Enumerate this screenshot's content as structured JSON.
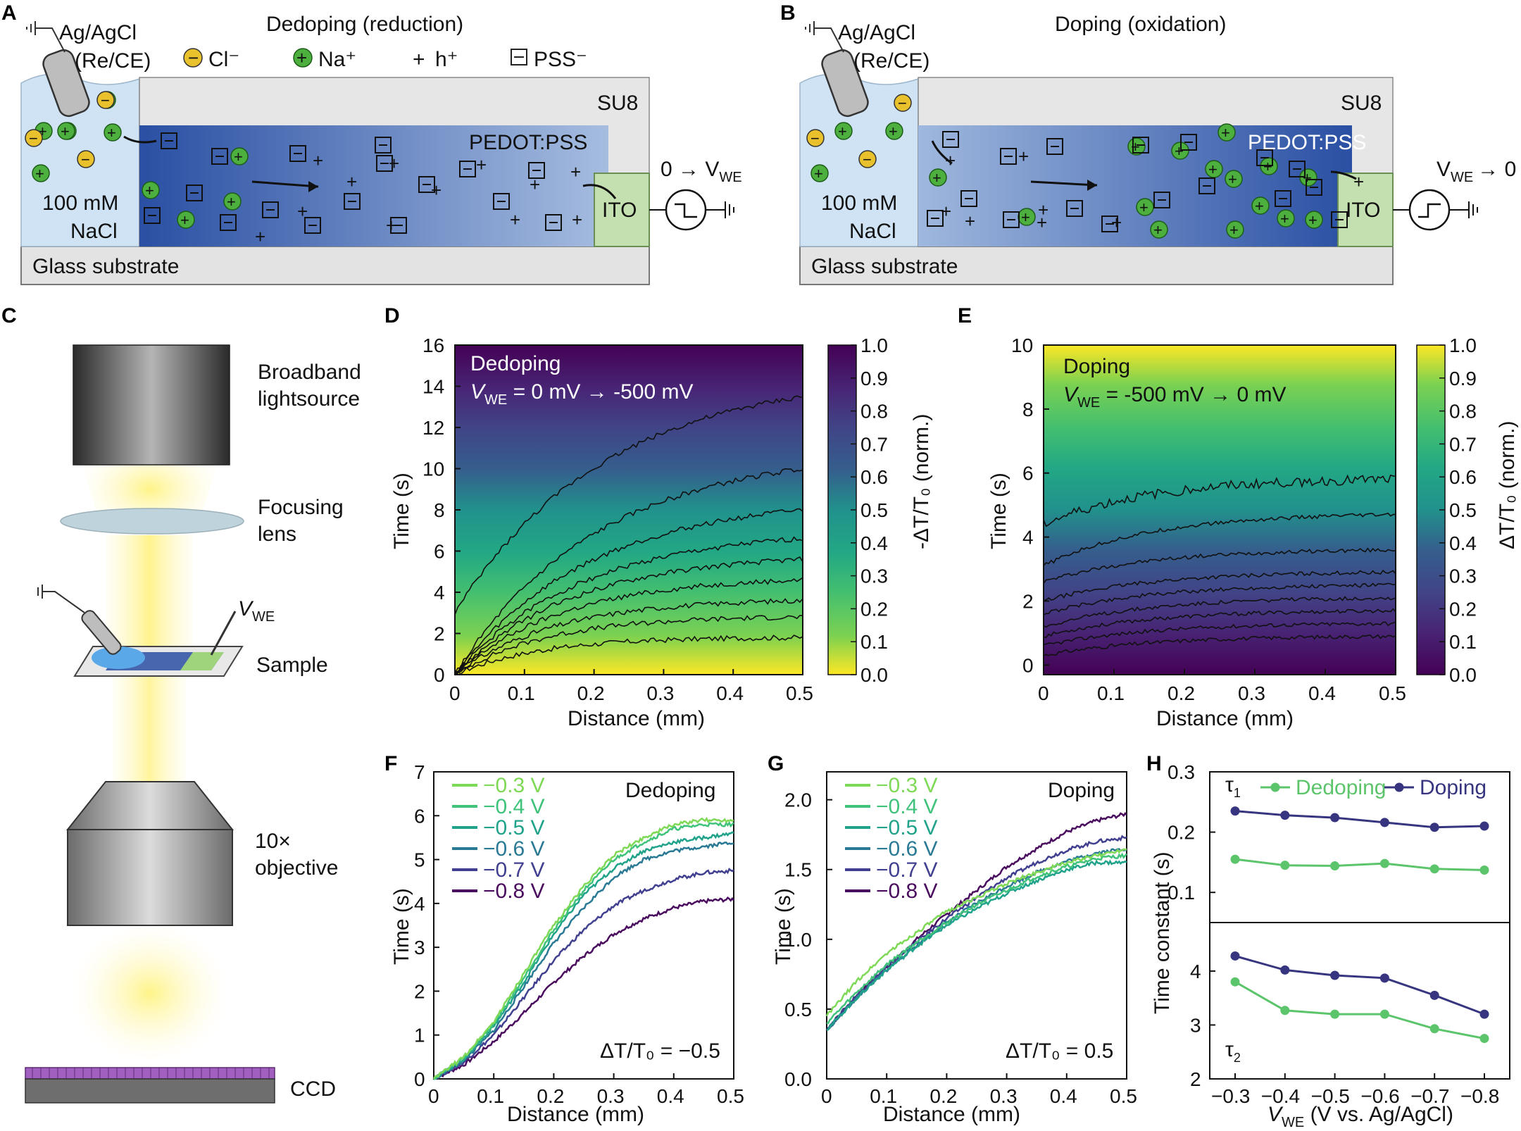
{
  "panels": {
    "A": {
      "label": "A",
      "title": "Dedoping (reduction)",
      "electrode": [
        "Ag/AgCl",
        "(Re/CE)"
      ],
      "legend": {
        "cl": "Cl⁻",
        "na": "Na⁺",
        "h": "h⁺",
        "pss": "PSS⁻"
      },
      "layer_su8": "SU8",
      "layer_pedot": "PEDOT:PSS",
      "electrolyte": [
        "100 mM",
        "NaCl"
      ],
      "contact": "ITO",
      "substrate": "Glass substrate",
      "voltage": "0 → V",
      "voltage_sub": "WE",
      "colors": {
        "electrolyte": "#cfe3f4",
        "pedot_dark": "#2a4fa3",
        "pedot_light": "#9cb6dc",
        "ito": "#c5e0b0",
        "su8": "#e6e6e6",
        "substrate": "#e3e3e3",
        "cl": "#e8c12d",
        "na": "#4caf3e"
      }
    },
    "B": {
      "label": "B",
      "title": "Doping (oxidation)",
      "electrode": [
        "Ag/AgCl",
        "(Re/CE)"
      ],
      "layer_su8": "SU8",
      "layer_pedot": "PEDOT:PSS",
      "electrolyte": [
        "100 mM",
        "NaCl"
      ],
      "contact": "ITO",
      "substrate": "Glass substrate",
      "voltage": "V",
      "voltage_sub": "WE",
      "voltage_end": "→ 0"
    },
    "C": {
      "label": "C",
      "items": [
        "Broadband lightsource",
        "Focusing lens",
        "Sample",
        "10× objective",
        "CCD"
      ],
      "vwe": "V",
      "vwe_sub": "WE"
    },
    "D": {
      "label": "D",
      "chart_data": {
        "type": "heatmap",
        "annotation": "Dedoping",
        "annotation2_prefix": "V",
        "annotation2_sub": "WE",
        "annotation2_suffix": " = 0 mV → -500 mV",
        "xlabel": "Distance (mm)",
        "ylabel": "Time (s)",
        "xlim": [
          0,
          0.5
        ],
        "ylim": [
          0,
          16
        ],
        "xticks": [
          "0",
          "0.1",
          "0.2",
          "0.3",
          "0.4",
          "0.5"
        ],
        "yticks": [
          "0",
          "2",
          "4",
          "6",
          "8",
          "10",
          "12",
          "14",
          "16"
        ],
        "colorbar_label": "-ΔT/T₀ (norm.)",
        "colorbar_ticks": [
          "0.0",
          "0.1",
          "0.2",
          "0.3",
          "0.4",
          "0.5",
          "0.6",
          "0.7",
          "0.8",
          "0.9",
          "1.0"
        ],
        "colormap": "viridis-reversed",
        "contour_levels": [
          0.1,
          0.2,
          0.3,
          0.4,
          0.5,
          0.6,
          0.7,
          0.8,
          0.9
        ],
        "contour_end_times": [
          1.8,
          2.8,
          3.6,
          4.6,
          5.6,
          6.6,
          8.0,
          10.0,
          13.5
        ]
      }
    },
    "E": {
      "label": "E",
      "chart_data": {
        "type": "heatmap",
        "annotation": "Doping",
        "annotation2_prefix": "V",
        "annotation2_sub": "WE",
        "annotation2_suffix": " = -500 mV → 0 mV",
        "xlabel": "Distance (mm)",
        "ylabel": "Time (s)",
        "xlim": [
          0,
          0.5
        ],
        "ylim": [
          -0.3,
          10
        ],
        "xticks": [
          "0",
          "0.1",
          "0.2",
          "0.3",
          "0.4",
          "0.5"
        ],
        "yticks": [
          "0",
          "2",
          "4",
          "6",
          "8",
          "10"
        ],
        "colorbar_label": "ΔT/T₀ (norm.)",
        "colorbar_ticks": [
          "0.0",
          "0.1",
          "0.2",
          "0.3",
          "0.4",
          "0.5",
          "0.6",
          "0.7",
          "0.8",
          "0.9",
          "1.0"
        ],
        "colormap": "viridis",
        "contour_start_times": [
          0.3,
          0.6,
          0.9,
          1.2,
          1.6,
          2.0,
          2.6,
          3.1,
          4.4
        ],
        "contour_end_times": [
          0.9,
          1.3,
          1.7,
          2.1,
          2.5,
          2.9,
          3.6,
          4.7,
          5.8
        ]
      }
    },
    "F": {
      "label": "F",
      "chart_data": {
        "type": "line",
        "annotation": "Dedoping",
        "condition": "ΔT/T₀ = −0.5",
        "xlabel": "Distance (mm)",
        "ylabel": "Time (s)",
        "xlim": [
          0,
          0.5
        ],
        "ylim": [
          0,
          7
        ],
        "xticks": [
          "0",
          "0.1",
          "0.2",
          "0.3",
          "0.4",
          "0.5"
        ],
        "yticks": [
          "0",
          "1",
          "2",
          "3",
          "4",
          "5",
          "6",
          "7"
        ],
        "x": [
          0,
          0.05,
          0.1,
          0.15,
          0.2,
          0.25,
          0.3,
          0.35,
          0.4,
          0.45,
          0.5
        ],
        "series": [
          {
            "name": "−0.3 V",
            "color": "#7ed957",
            "values": [
              0,
              0.5,
              1.3,
              2.4,
              3.5,
              4.4,
              5.1,
              5.5,
              5.8,
              5.9,
              5.9
            ]
          },
          {
            "name": "−0.4 V",
            "color": "#3fc27a",
            "values": [
              0,
              0.48,
              1.25,
              2.3,
              3.4,
              4.3,
              5.0,
              5.4,
              5.7,
              5.8,
              5.8
            ]
          },
          {
            "name": "−0.5 V",
            "color": "#20a38a",
            "values": [
              0,
              0.45,
              1.2,
              2.2,
              3.3,
              4.2,
              4.8,
              5.2,
              5.4,
              5.5,
              5.6
            ]
          },
          {
            "name": "−0.6 V",
            "color": "#2a7a95",
            "values": [
              0,
              0.42,
              1.1,
              2.1,
              3.1,
              3.9,
              4.6,
              5.0,
              5.2,
              5.3,
              5.4
            ]
          },
          {
            "name": "−0.7 V",
            "color": "#413f8f",
            "values": [
              0,
              0.38,
              1.0,
              1.85,
              2.7,
              3.4,
              3.95,
              4.3,
              4.55,
              4.7,
              4.75
            ]
          },
          {
            "name": "−0.8 V",
            "color": "#4a0c5e",
            "values": [
              0,
              0.32,
              0.85,
              1.5,
              2.2,
              2.8,
              3.3,
              3.65,
              3.9,
              4.05,
              4.1
            ]
          }
        ]
      }
    },
    "G": {
      "label": "G",
      "chart_data": {
        "type": "line",
        "annotation": "Doping",
        "condition": "ΔT/T₀ = 0.5",
        "xlabel": "Distance (mm)",
        "ylabel": "Time (s)",
        "xlim": [
          0,
          0.5
        ],
        "ylim": [
          0,
          2.2
        ],
        "xticks": [
          "0",
          "0.1",
          "0.2",
          "0.3",
          "0.4",
          "0.5"
        ],
        "yticks": [
          "0.0",
          "0.5",
          "1.0",
          "1.5",
          "2.0"
        ],
        "x": [
          0,
          0.05,
          0.1,
          0.15,
          0.2,
          0.25,
          0.3,
          0.35,
          0.4,
          0.45,
          0.5
        ],
        "series": [
          {
            "name": "−0.3 V",
            "color": "#7ed957",
            "values": [
              0.45,
              0.7,
              0.9,
              1.05,
              1.2,
              1.3,
              1.4,
              1.48,
              1.55,
              1.6,
              1.65
            ]
          },
          {
            "name": "−0.4 V",
            "color": "#3fc27a",
            "values": [
              0.4,
              0.62,
              0.82,
              0.98,
              1.12,
              1.25,
              1.35,
              1.45,
              1.52,
              1.58,
              1.6
            ]
          },
          {
            "name": "−0.5 V",
            "color": "#20a38a",
            "values": [
              0.35,
              0.58,
              0.78,
              0.95,
              1.1,
              1.22,
              1.33,
              1.42,
              1.5,
              1.55,
              1.55
            ]
          },
          {
            "name": "−0.6 V",
            "color": "#2a7a95",
            "values": [
              0.35,
              0.58,
              0.78,
              0.96,
              1.12,
              1.26,
              1.38,
              1.48,
              1.56,
              1.62,
              1.65
            ]
          },
          {
            "name": "−0.7 V",
            "color": "#413f8f",
            "values": [
              0.35,
              0.6,
              0.8,
              0.98,
              1.15,
              1.3,
              1.44,
              1.55,
              1.64,
              1.7,
              1.73
            ]
          },
          {
            "name": "−0.8 V",
            "color": "#4a0c5e",
            "values": [
              0.35,
              0.6,
              0.8,
              1.0,
              1.18,
              1.35,
              1.52,
              1.65,
              1.77,
              1.85,
              1.9
            ]
          }
        ]
      }
    },
    "H": {
      "label": "H",
      "chart_data": {
        "type": "line",
        "xlabel_prefix": "V",
        "xlabel_sub": "WE",
        "xlabel_suffix": " (V vs. Ag/AgCl)",
        "ylabel": "Time constant (s)",
        "categories": [
          "−0.3",
          "−0.4",
          "−0.5",
          "−0.6",
          "−0.7",
          "−0.8"
        ],
        "tau1_label": "τ",
        "tau1_sub": "1",
        "tau2_label": "τ",
        "tau2_sub": "2",
        "top": {
          "ylim": [
            0.05,
            0.3
          ],
          "yticks": [
            "0.1",
            "0.2",
            "0.3"
          ],
          "series": [
            {
              "name": "Dedoping",
              "color": "#5cc56b",
              "values": [
                0.155,
                0.145,
                0.144,
                0.148,
                0.139,
                0.137
              ]
            },
            {
              "name": "Doping",
              "color": "#37357f",
              "values": [
                0.235,
                0.228,
                0.224,
                0.216,
                0.208,
                0.21
              ]
            }
          ]
        },
        "bottom": {
          "ylim": [
            2,
            4.9
          ],
          "yticks": [
            "2",
            "3",
            "4"
          ],
          "series": [
            {
              "name": "Dedoping",
              "color": "#5cc56b",
              "values": [
                3.8,
                3.27,
                3.2,
                3.2,
                2.93,
                2.75
              ]
            },
            {
              "name": "Doping",
              "color": "#37357f",
              "values": [
                4.28,
                4.02,
                3.92,
                3.87,
                3.55,
                3.2
              ]
            }
          ]
        }
      }
    }
  }
}
